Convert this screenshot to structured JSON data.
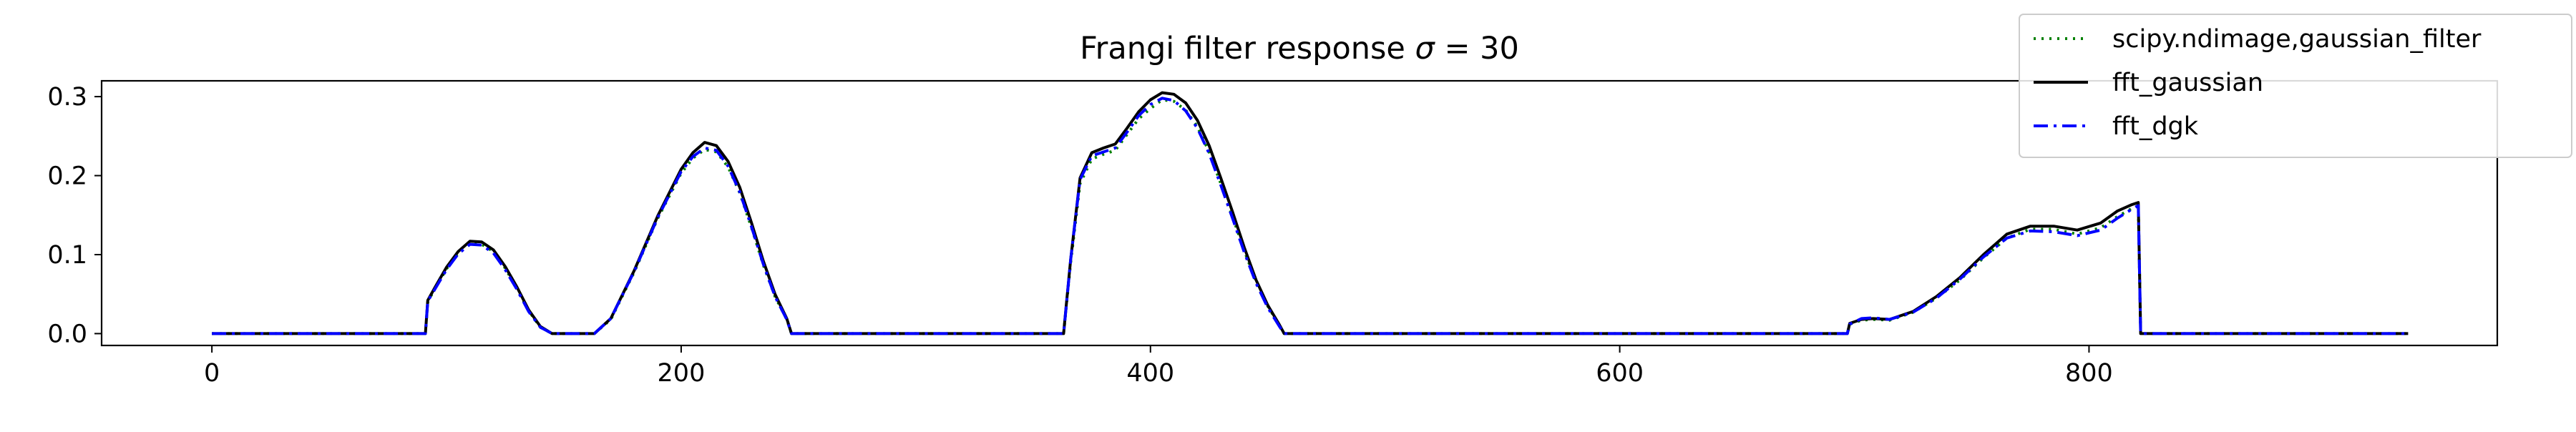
{
  "chart_data": {
    "type": "line",
    "title": "Frangi filter response σ = 30",
    "title_parts": {
      "prefix": "Frangi filter response ",
      "symbol": "σ",
      "suffix": " = 30"
    },
    "xlabel": "",
    "ylabel": "",
    "xlim": [
      -47,
      974
    ],
    "ylim": [
      -0.015,
      0.32
    ],
    "x_ticks": [
      0,
      200,
      400,
      600,
      800
    ],
    "y_ticks": [
      0.0,
      0.1,
      0.2,
      0.3
    ],
    "x_tick_labels": [
      "0",
      "200",
      "400",
      "600",
      "800"
    ],
    "y_tick_labels": [
      "0.0",
      "0.1",
      "0.2",
      "0.3"
    ],
    "grid": false,
    "legend_position": "top-right",
    "legend": [
      {
        "name": "scipy.ndimage,gaussian_filter",
        "color": "#008000",
        "style": "dotted"
      },
      {
        "name": "fft_gaussian",
        "color": "#000000",
        "style": "solid"
      },
      {
        "name": "fft_dgk",
        "color": "#0000ff",
        "style": "dashdot"
      }
    ],
    "series": [
      {
        "name": "scipy.ndimage,gaussian_filter",
        "color": "#008000",
        "style": "dotted",
        "x": [
          0,
          91,
          92,
          95,
          100,
          105,
          110,
          115,
          120,
          125,
          130,
          135,
          140,
          145,
          150,
          163,
          170,
          180,
          190,
          200,
          205,
          210,
          215,
          220,
          225,
          230,
          235,
          240,
          245,
          247,
          248,
          260,
          363,
          364,
          366,
          370,
          375,
          380,
          385,
          390,
          395,
          400,
          405,
          410,
          415,
          420,
          425,
          430,
          435,
          440,
          445,
          450,
          455,
          457,
          458,
          500,
          697,
          698,
          703,
          708,
          715,
          725,
          735,
          745,
          755,
          765,
          775,
          785,
          795,
          805,
          812,
          818,
          821,
          822,
          830,
          936
        ],
        "y": [
          0.0,
          0.0,
          0.04,
          0.057,
          0.082,
          0.102,
          0.114,
          0.113,
          0.104,
          0.083,
          0.057,
          0.029,
          0.008,
          0.0,
          0.0,
          0.0,
          0.018,
          0.078,
          0.146,
          0.203,
          0.222,
          0.233,
          0.23,
          0.211,
          0.178,
          0.134,
          0.087,
          0.047,
          0.018,
          0.0,
          0.0,
          0.0,
          0.0,
          0.03,
          0.09,
          0.19,
          0.221,
          0.227,
          0.232,
          0.252,
          0.272,
          0.285,
          0.296,
          0.294,
          0.283,
          0.262,
          0.23,
          0.19,
          0.148,
          0.105,
          0.066,
          0.035,
          0.01,
          0.0,
          0.0,
          0.0,
          0.0,
          0.012,
          0.017,
          0.018,
          0.017,
          0.027,
          0.045,
          0.068,
          0.096,
          0.121,
          0.132,
          0.132,
          0.126,
          0.134,
          0.148,
          0.158,
          0.162,
          0.0,
          0.0,
          0.0
        ]
      },
      {
        "name": "fft_gaussian",
        "color": "#000000",
        "style": "solid",
        "x": [
          0,
          91,
          92,
          95,
          100,
          105,
          110,
          115,
          120,
          125,
          130,
          135,
          140,
          145,
          150,
          163,
          170,
          180,
          190,
          200,
          205,
          210,
          215,
          220,
          225,
          230,
          235,
          240,
          245,
          247,
          248,
          260,
          363,
          364,
          366,
          370,
          375,
          380,
          385,
          390,
          395,
          400,
          405,
          410,
          415,
          420,
          425,
          430,
          435,
          440,
          445,
          450,
          455,
          457,
          458,
          500,
          697,
          698,
          703,
          708,
          715,
          725,
          735,
          745,
          755,
          765,
          775,
          785,
          795,
          805,
          812,
          818,
          821,
          822,
          830,
          936
        ],
        "y": [
          0.0,
          0.0,
          0.042,
          0.058,
          0.084,
          0.104,
          0.117,
          0.116,
          0.106,
          0.085,
          0.059,
          0.03,
          0.009,
          0.0,
          0.0,
          0.0,
          0.019,
          0.08,
          0.149,
          0.208,
          0.229,
          0.242,
          0.238,
          0.218,
          0.185,
          0.14,
          0.092,
          0.05,
          0.019,
          0.0,
          0.0,
          0.0,
          0.0,
          0.032,
          0.094,
          0.197,
          0.229,
          0.235,
          0.24,
          0.26,
          0.281,
          0.296,
          0.305,
          0.303,
          0.292,
          0.27,
          0.238,
          0.197,
          0.154,
          0.109,
          0.068,
          0.036,
          0.011,
          0.0,
          0.0,
          0.0,
          0.0,
          0.013,
          0.018,
          0.019,
          0.018,
          0.028,
          0.047,
          0.071,
          0.1,
          0.126,
          0.136,
          0.136,
          0.131,
          0.14,
          0.155,
          0.163,
          0.166,
          0.0,
          0.0,
          0.0
        ]
      },
      {
        "name": "fft_dgk",
        "color": "#0000ff",
        "style": "dashdot",
        "x": [
          0,
          91,
          92,
          95,
          100,
          105,
          110,
          115,
          120,
          125,
          130,
          135,
          140,
          145,
          150,
          163,
          170,
          180,
          190,
          200,
          205,
          210,
          215,
          220,
          225,
          230,
          235,
          240,
          245,
          247,
          248,
          260,
          363,
          364,
          366,
          370,
          375,
          380,
          385,
          390,
          395,
          400,
          405,
          410,
          415,
          420,
          425,
          430,
          435,
          440,
          445,
          450,
          455,
          457,
          458,
          500,
          697,
          698,
          703,
          708,
          715,
          725,
          735,
          745,
          755,
          765,
          775,
          785,
          795,
          805,
          812,
          818,
          821,
          822,
          830,
          936
        ],
        "y": [
          0.0,
          0.0,
          0.041,
          0.056,
          0.081,
          0.101,
          0.113,
          0.112,
          0.102,
          0.081,
          0.056,
          0.028,
          0.008,
          0.0,
          0.0,
          0.0,
          0.019,
          0.079,
          0.147,
          0.205,
          0.224,
          0.235,
          0.232,
          0.212,
          0.179,
          0.135,
          0.088,
          0.047,
          0.018,
          0.0,
          0.0,
          0.0,
          0.0,
          0.031,
          0.094,
          0.195,
          0.225,
          0.23,
          0.235,
          0.255,
          0.276,
          0.29,
          0.298,
          0.295,
          0.282,
          0.26,
          0.228,
          0.188,
          0.146,
          0.103,
          0.064,
          0.033,
          0.009,
          0.0,
          0.0,
          0.0,
          0.0,
          0.012,
          0.019,
          0.02,
          0.018,
          0.027,
          0.045,
          0.069,
          0.097,
          0.121,
          0.13,
          0.129,
          0.124,
          0.131,
          0.146,
          0.157,
          0.162,
          0.0,
          0.0,
          0.0
        ]
      }
    ]
  }
}
